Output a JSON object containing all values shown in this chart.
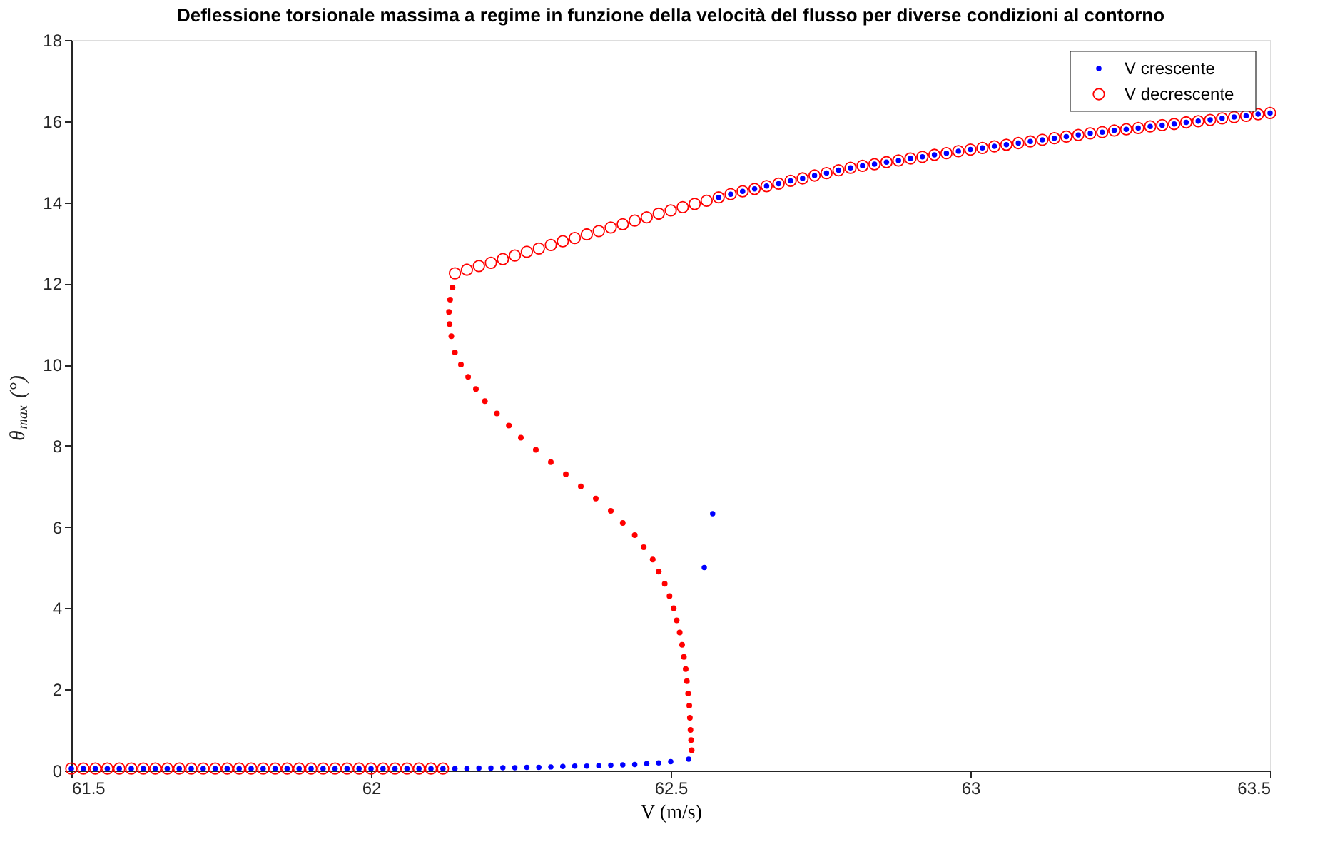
{
  "chart_data": {
    "type": "scatter",
    "title": "Deflessione torsionale massima a regime in funzione della velocità del flusso per diverse condizioni al contorno",
    "xlabel": "V (m/s)",
    "ylabel": "θ$_{max}$ (°)",
    "xlim": [
      61.5,
      63.5
    ],
    "xticks": [
      61.5,
      62,
      62.5,
      63,
      63.5
    ],
    "ylim": [
      0,
      18
    ],
    "yticks": [
      0,
      2,
      4,
      6,
      8,
      10,
      12,
      14,
      16,
      18
    ],
    "grid": false,
    "legend": "top right",
    "marker": "circle",
    "series": [
      {
        "name": "V crescente",
        "color": "#0000ff",
        "x": [
          61.5,
          61.52,
          61.54,
          61.56,
          61.58,
          61.6,
          61.62,
          61.64,
          61.66,
          61.68,
          61.7,
          61.72,
          61.74,
          61.76,
          61.78,
          61.8,
          61.82,
          61.84,
          61.86,
          61.88,
          61.9,
          61.92,
          61.94,
          61.96,
          61.98,
          62.0,
          62.02,
          62.04,
          62.06,
          62.08,
          62.1,
          62.12,
          62.14,
          62.16,
          62.18,
          62.2,
          62.22,
          62.24,
          62.26,
          62.28,
          62.3,
          62.32,
          62.34,
          62.36,
          62.38,
          62.4,
          62.42,
          62.44,
          62.46,
          62.48,
          62.5,
          62.53,
          62.556,
          62.57,
          62.58,
          62.6,
          62.62,
          62.64,
          62.66,
          62.68,
          62.7,
          62.72,
          62.74,
          62.76,
          62.78,
          62.8,
          62.82,
          62.84,
          62.86,
          62.88,
          62.9,
          62.92,
          62.94,
          62.96,
          62.98,
          63.0,
          63.02,
          63.04,
          63.06,
          63.08,
          63.1,
          63.12,
          63.14,
          63.16,
          63.18,
          63.2,
          63.22,
          63.24,
          63.26,
          63.28,
          63.3,
          63.32,
          63.34,
          63.36,
          63.38,
          63.4,
          63.42,
          63.44,
          63.46,
          63.48,
          63.5
        ],
        "values": [
          0.05,
          0.05,
          0.05,
          0.05,
          0.05,
          0.05,
          0.05,
          0.05,
          0.05,
          0.05,
          0.05,
          0.05,
          0.05,
          0.05,
          0.05,
          0.05,
          0.05,
          0.05,
          0.05,
          0.05,
          0.05,
          0.05,
          0.05,
          0.05,
          0.05,
          0.05,
          0.05,
          0.05,
          0.05,
          0.05,
          0.05,
          0.05,
          0.05,
          0.05,
          0.06,
          0.06,
          0.07,
          0.07,
          0.08,
          0.08,
          0.09,
          0.1,
          0.11,
          0.11,
          0.12,
          0.13,
          0.14,
          0.15,
          0.17,
          0.19,
          0.22,
          0.28,
          5.0,
          6.33,
          14.12,
          14.2,
          14.27,
          14.33,
          14.4,
          14.46,
          14.53,
          14.59,
          14.66,
          14.72,
          14.79,
          14.85,
          14.9,
          14.94,
          14.99,
          15.03,
          15.08,
          15.12,
          15.17,
          15.21,
          15.26,
          15.3,
          15.34,
          15.38,
          15.42,
          15.46,
          15.5,
          15.54,
          15.58,
          15.62,
          15.66,
          15.7,
          15.73,
          15.77,
          15.8,
          15.83,
          15.87,
          15.9,
          15.93,
          15.97,
          16.0,
          16.03,
          16.07,
          16.1,
          16.13,
          16.17,
          16.2
        ]
      },
      {
        "name": "V decrescente",
        "color": "#ff0000",
        "x": [
          61.5,
          61.52,
          61.54,
          61.56,
          61.58,
          61.6,
          61.62,
          61.64,
          61.66,
          61.68,
          61.7,
          61.72,
          61.74,
          61.76,
          61.78,
          61.8,
          61.82,
          61.84,
          61.86,
          61.88,
          61.9,
          61.92,
          61.94,
          61.96,
          61.98,
          62.0,
          62.02,
          62.04,
          62.06,
          62.08,
          62.1,
          62.12,
          62.14,
          62.16,
          62.18,
          62.2,
          62.22,
          62.24,
          62.26,
          62.28,
          62.3,
          62.32,
          62.34,
          62.36,
          62.38,
          62.4,
          62.42,
          62.44,
          62.46,
          62.48,
          62.5,
          62.52,
          62.54,
          62.56,
          62.58,
          62.6,
          62.62,
          62.64,
          62.66,
          62.68,
          62.7,
          62.72,
          62.74,
          62.76,
          62.78,
          62.8,
          62.82,
          62.84,
          62.86,
          62.88,
          62.9,
          62.92,
          62.94,
          62.96,
          62.98,
          63.0,
          63.02,
          63.04,
          63.06,
          63.08,
          63.1,
          63.12,
          63.14,
          63.16,
          63.18,
          63.2,
          63.22,
          63.24,
          63.26,
          63.28,
          63.3,
          63.32,
          63.34,
          63.36,
          63.38,
          63.4,
          63.42,
          63.44,
          63.46,
          63.48,
          63.5
        ],
        "values": [
          0.05,
          0.05,
          0.05,
          0.05,
          0.05,
          0.05,
          0.05,
          0.05,
          0.05,
          0.05,
          0.05,
          0.05,
          0.05,
          0.05,
          0.05,
          0.05,
          0.05,
          0.05,
          0.05,
          0.05,
          0.05,
          0.05,
          0.05,
          0.05,
          0.05,
          0.05,
          0.05,
          0.05,
          0.05,
          0.05,
          0.05,
          0.05,
          12.25,
          12.34,
          12.43,
          12.51,
          12.6,
          12.69,
          12.78,
          12.86,
          12.95,
          13.04,
          13.12,
          13.21,
          13.29,
          13.38,
          13.46,
          13.55,
          13.63,
          13.72,
          13.8,
          13.88,
          13.96,
          14.04,
          14.12,
          14.2,
          14.27,
          14.33,
          14.4,
          14.46,
          14.53,
          14.59,
          14.66,
          14.72,
          14.79,
          14.85,
          14.9,
          14.94,
          14.99,
          15.03,
          15.08,
          15.12,
          15.17,
          15.21,
          15.26,
          15.3,
          15.34,
          15.38,
          15.42,
          15.46,
          15.5,
          15.54,
          15.58,
          15.62,
          15.66,
          15.7,
          15.73,
          15.77,
          15.8,
          15.83,
          15.87,
          15.9,
          15.93,
          15.97,
          16.0,
          16.03,
          16.07,
          16.1,
          16.13,
          16.17,
          16.2
        ]
      },
      {
        "color": "#ff0000",
        "x": [
          62.136,
          62.132,
          62.13,
          62.131,
          62.134,
          62.14,
          62.15,
          62.162,
          62.175,
          62.19,
          62.21,
          62.23,
          62.25,
          62.275,
          62.3,
          62.325,
          62.35,
          62.375,
          62.4,
          62.42,
          62.44,
          62.455,
          62.47,
          62.48,
          62.49,
          62.498,
          62.505,
          62.51,
          62.515,
          62.519,
          62.522,
          62.525,
          62.527,
          62.529,
          62.531,
          62.532,
          62.533,
          62.534,
          62.535
        ],
        "values": [
          11.9,
          11.6,
          11.3,
          11.0,
          10.7,
          10.3,
          10.0,
          9.7,
          9.4,
          9.1,
          8.8,
          8.5,
          8.2,
          7.9,
          7.6,
          7.3,
          7.0,
          6.7,
          6.4,
          6.1,
          5.8,
          5.5,
          5.2,
          4.9,
          4.6,
          4.3,
          4.0,
          3.7,
          3.4,
          3.1,
          2.8,
          2.5,
          2.2,
          1.9,
          1.6,
          1.3,
          1.0,
          0.75,
          0.5
        ]
      }
    ]
  }
}
